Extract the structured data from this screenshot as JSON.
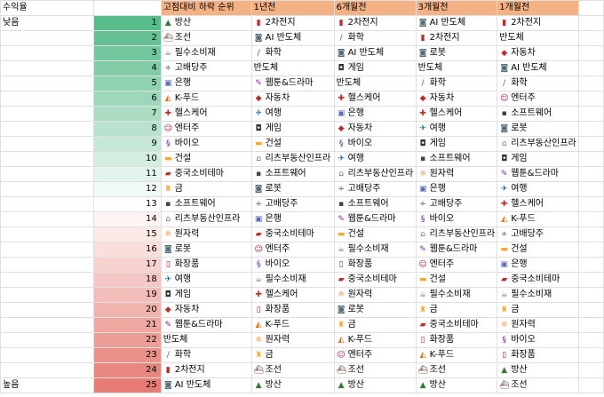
{
  "labels": {
    "a1": "수익율",
    "low": "낮음",
    "high": "높음"
  },
  "headers": [
    "고점대비 하락 순위",
    "1년전",
    "6개월전",
    "3개월전",
    "1개월전"
  ],
  "gradient_colors": {
    "top": "#57bb8a",
    "mid": "#ffffff",
    "bottom": "#e67c73"
  },
  "rows": [
    {
      "rank": "1",
      "base": [
        "rocket-icon",
        "방산"
      ],
      "y1": [
        "battery-icon",
        "2차전지"
      ],
      "m6": [
        "battery-icon",
        "2차전지"
      ],
      "m3": [
        "robot-icon",
        "AI 반도체"
      ],
      "m1": [
        "battery-icon",
        "2차전지"
      ]
    },
    {
      "rank": "2",
      "base": [
        "ship-icon",
        "조선"
      ],
      "y1": [
        "robot-icon",
        "AI 반도체"
      ],
      "m6": [
        "syringe-icon",
        "화학"
      ],
      "m3": [
        "battery-icon",
        "2차전지"
      ],
      "m1": [
        "",
        "반도체"
      ]
    },
    {
      "rank": "3",
      "base": [
        "cup-icon",
        "필수소비재"
      ],
      "y1": [
        "syringe-icon",
        "화학"
      ],
      "m6": [
        "robot-icon",
        "AI 반도체"
      ],
      "m3": [
        "robot-icon",
        "로봇"
      ],
      "m1": [
        "car-icon",
        "자동차"
      ]
    },
    {
      "rank": "4",
      "base": [
        "divide-icon",
        "고배당주"
      ],
      "y1": [
        "",
        "반도체"
      ],
      "m6": [
        "gamepad-icon",
        "게임"
      ],
      "m3": [
        "",
        "반도체"
      ],
      "m1": [
        "robot-icon",
        "AI 반도체"
      ]
    },
    {
      "rank": "5",
      "base": [
        "bank-icon",
        "은행"
      ],
      "y1": [
        "pencil-icon",
        "웹툰&드라마"
      ],
      "m6": [
        "",
        "반도체"
      ],
      "m3": [
        "syringe-icon",
        "화학"
      ],
      "m1": [
        "syringe-icon",
        "화학"
      ]
    },
    {
      "rank": "6",
      "base": [
        "pizza-icon",
        "K-푸드"
      ],
      "y1": [
        "car-icon",
        "자동차"
      ],
      "m6": [
        "hospital-icon",
        "헬스케어"
      ],
      "m3": [
        "car-icon",
        "자동차"
      ],
      "m1": [
        "person-icon",
        "엔터주"
      ]
    },
    {
      "rank": "7",
      "base": [
        "hospital-icon",
        "헬스케어"
      ],
      "y1": [
        "plane-icon",
        "여행"
      ],
      "m6": [
        "bank-icon",
        "은행"
      ],
      "m3": [
        "hospital-icon",
        "헬스케어"
      ],
      "m1": [
        "disk-icon",
        "소프트웨어"
      ]
    },
    {
      "rank": "8",
      "base": [
        "person-icon",
        "엔터주"
      ],
      "y1": [
        "gamepad-icon",
        "게임"
      ],
      "m6": [
        "car-icon",
        "자동차"
      ],
      "m3": [
        "plane-icon",
        "여행"
      ],
      "m1": [
        "robot-icon",
        "로봇"
      ]
    },
    {
      "rank": "9",
      "base": [
        "dna-icon",
        "바이오"
      ],
      "y1": [
        "barrier-icon",
        "건설"
      ],
      "m6": [
        "dna-icon",
        "바이오"
      ],
      "m3": [
        "gamepad-icon",
        "게임"
      ],
      "m1": [
        "house-icon",
        "리츠부동산인프라"
      ]
    },
    {
      "rank": "10",
      "base": [
        "barrier-icon",
        "건설"
      ],
      "y1": [
        "house-icon",
        "리츠부동산인프라"
      ],
      "m6": [
        "plane-icon",
        "여행"
      ],
      "m3": [
        "disk-icon",
        "소프트웨어"
      ],
      "m1": [
        "gamepad-icon",
        "게임"
      ]
    },
    {
      "rank": "11",
      "base": [
        "flag-icon",
        "중국소비테마"
      ],
      "y1": [
        "disk-icon",
        "소프트웨어"
      ],
      "m6": [
        "house-icon",
        "리츠부동산인프라"
      ],
      "m3": [
        "atom-icon",
        "원자력"
      ],
      "m1": [
        "pencil-icon",
        "웹툰&드라마"
      ]
    },
    {
      "rank": "12",
      "base": [
        "trophy-icon",
        "금"
      ],
      "y1": [
        "robot-icon",
        "로봇"
      ],
      "m6": [
        "divide-icon",
        "고배당주"
      ],
      "m3": [
        "bank-icon",
        "은행"
      ],
      "m1": [
        "plane-icon",
        "여행"
      ]
    },
    {
      "rank": "13",
      "base": [
        "disk-icon",
        "소프트웨어"
      ],
      "y1": [
        "divide-icon",
        "고배당주"
      ],
      "m6": [
        "disk-icon",
        "소프트웨어"
      ],
      "m3": [
        "divide-icon",
        "고배당주"
      ],
      "m1": [
        "hospital-icon",
        "헬스케어"
      ]
    },
    {
      "rank": "14",
      "base": [
        "house-icon",
        "리츠부동산인프라"
      ],
      "y1": [
        "bank-icon",
        "은행"
      ],
      "m6": [
        "pencil-icon",
        "웹툰&드라마"
      ],
      "m3": [
        "dna-icon",
        "바이오"
      ],
      "m1": [
        "pizza-icon",
        "K-푸드"
      ]
    },
    {
      "rank": "15",
      "base": [
        "atom-icon",
        "원자력"
      ],
      "y1": [
        "flag-icon",
        "중국소비테마"
      ],
      "m6": [
        "barrier-icon",
        "건설"
      ],
      "m3": [
        "house-icon",
        "리츠부동산인프라"
      ],
      "m1": [
        "divide-icon",
        "고배당주"
      ]
    },
    {
      "rank": "16",
      "base": [
        "robot-icon",
        "로봇"
      ],
      "y1": [
        "person-icon",
        "엔터주"
      ],
      "m6": [
        "cup-icon",
        "필수소비재"
      ],
      "m3": [
        "pencil-icon",
        "웹툰&드라마"
      ],
      "m1": [
        "barrier-icon",
        "건설"
      ]
    },
    {
      "rank": "17",
      "base": [
        "lipstick-icon",
        "화장품"
      ],
      "y1": [
        "dna-icon",
        "바이오"
      ],
      "m6": [
        "lipstick-icon",
        "화장품"
      ],
      "m3": [
        "person-icon",
        "엔터주"
      ],
      "m1": [
        "bank-icon",
        "은행"
      ]
    },
    {
      "rank": "18",
      "base": [
        "plane-icon",
        "여행"
      ],
      "y1": [
        "cup-icon",
        "필수소비재"
      ],
      "m6": [
        "flag-icon",
        "중국소비테마"
      ],
      "m3": [
        "barrier-icon",
        "건설"
      ],
      "m1": [
        "flag-icon",
        "중국소비테마"
      ]
    },
    {
      "rank": "19",
      "base": [
        "gamepad-icon",
        "게임"
      ],
      "y1": [
        "hospital-icon",
        "헬스케어"
      ],
      "m6": [
        "atom-icon",
        "원자력"
      ],
      "m3": [
        "cup-icon",
        "필수소비재"
      ],
      "m1": [
        "cup-icon",
        "필수소비재"
      ]
    },
    {
      "rank": "20",
      "base": [
        "car-icon",
        "자동차"
      ],
      "y1": [
        "lipstick-icon",
        "화장품"
      ],
      "m6": [
        "robot-icon",
        "로봇"
      ],
      "m3": [
        "trophy-icon",
        "금"
      ],
      "m1": [
        "trophy-icon",
        "금"
      ]
    },
    {
      "rank": "21",
      "base": [
        "pencil-icon",
        "웹툰&드라마"
      ],
      "y1": [
        "pizza-icon",
        "K-푸드"
      ],
      "m6": [
        "trophy-icon",
        "금"
      ],
      "m3": [
        "flag-icon",
        "중국소비테마"
      ],
      "m1": [
        "atom-icon",
        "원자력"
      ]
    },
    {
      "rank": "22",
      "base": [
        "",
        "반도체"
      ],
      "y1": [
        "atom-icon",
        "원자력"
      ],
      "m6": [
        "pizza-icon",
        "K-푸드"
      ],
      "m3": [
        "lipstick-icon",
        "화장품"
      ],
      "m1": [
        "dna-icon",
        "바이오"
      ]
    },
    {
      "rank": "23",
      "base": [
        "syringe-icon",
        "화학"
      ],
      "y1": [
        "trophy-icon",
        "금"
      ],
      "m6": [
        "person-icon",
        "엔터주"
      ],
      "m3": [
        "pizza-icon",
        "K-푸드"
      ],
      "m1": [
        "lipstick-icon",
        "화장품"
      ]
    },
    {
      "rank": "24",
      "base": [
        "battery-icon",
        "2차전지"
      ],
      "y1": [
        "ship-icon",
        "조선"
      ],
      "m6": [
        "ship-icon",
        "조선"
      ],
      "m3": [
        "ship-icon",
        "조선"
      ],
      "m1": [
        "rocket-icon",
        "방산"
      ]
    },
    {
      "rank": "25",
      "base": [
        "robot-icon",
        "AI 반도체"
      ],
      "y1": [
        "rocket-icon",
        "방산"
      ],
      "m6": [
        "rocket-icon",
        "방산"
      ],
      "m3": [
        "rocket-icon",
        "방산"
      ],
      "m1": [
        "ship-icon",
        "조선"
      ]
    }
  ]
}
